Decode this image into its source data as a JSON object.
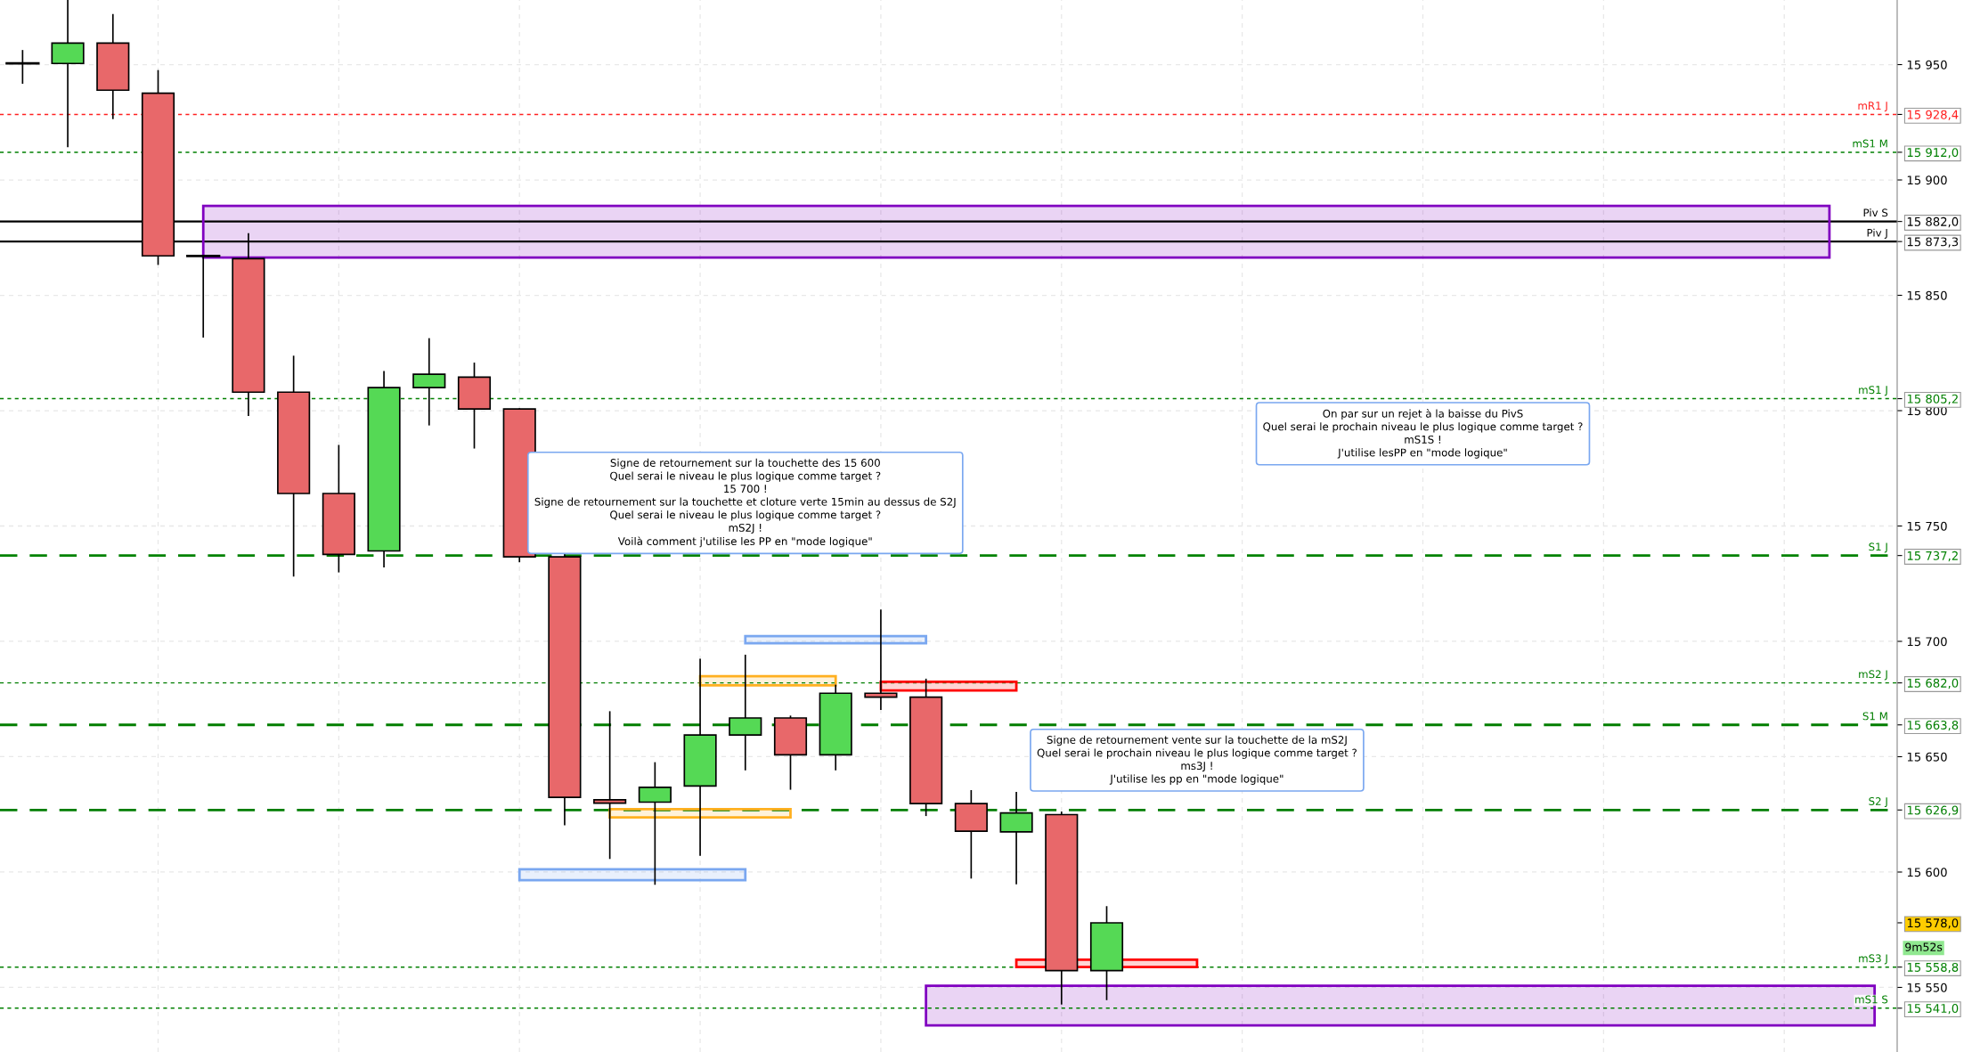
{
  "chart_data": {
    "type": "candlestick",
    "categories": [
      null,
      null,
      null,
      null,
      null,
      null,
      null,
      null,
      null,
      null,
      null,
      null,
      null,
      null,
      null,
      null,
      null,
      null,
      null,
      null,
      null,
      null,
      null,
      null,
      null,
      null,
      null,
      null,
      null,
      null,
      null,
      null,
      null,
      null,
      null,
      null,
      null,
      null,
      null,
      null,
      null,
      null
    ],
    "ohlc": [
      [
        15950.5,
        15956,
        15942,
        15950.5
      ],
      [
        15950.5,
        15978,
        15914.5,
        15959.3
      ],
      [
        15959.3,
        15971.6,
        15926.7,
        15938.9
      ],
      [
        15937.6,
        15947.3,
        15863.5,
        15867.1
      ],
      [
        15867,
        15867,
        15832,
        15867
      ],
      [
        15865.9,
        15876.6,
        15798,
        15808
      ],
      [
        15808,
        15823.5,
        15728.4,
        15764.1
      ],
      [
        15764.1,
        15784.8,
        15730.2,
        15737.7
      ],
      [
        15739.2,
        15816.9,
        15732.4,
        15810
      ],
      [
        15810,
        15831.1,
        15793.9,
        15815.8
      ],
      [
        15814.5,
        15820.5,
        15783.9,
        15800.7
      ],
      [
        15800.7,
        15800.7,
        15734.6,
        15736.6
      ],
      [
        15736.6,
        15737.5,
        15620.6,
        15632.4
      ],
      [
        15631.3,
        15669.4,
        15606,
        15629.9
      ],
      [
        15630.3,
        15647.3,
        15594.8,
        15636.7
      ],
      [
        15637.3,
        15692.1,
        15607.4,
        15659.4
      ],
      [
        15659.4,
        15693.9,
        15644.4,
        15666.8
      ],
      [
        15666.8,
        15667.5,
        15636,
        15650.8
      ],
      [
        15650.8,
        15680.9,
        15644.4,
        15677.5
      ],
      [
        15677.5,
        15713.5,
        15670.6,
        15675.8
      ],
      [
        15675.8,
        15683.5,
        15624.6,
        15629.7
      ],
      [
        15629.7,
        15635.2,
        15597.5,
        15617.7
      ],
      [
        15617.4,
        15634.4,
        15595,
        15625.6
      ],
      [
        15624.9,
        15625.9,
        15542.9,
        15557.3
      ],
      [
        15557.3,
        15584.9,
        15544.8,
        15578
      ],
      null,
      null,
      null,
      null,
      null,
      null,
      null,
      null,
      null,
      null,
      null,
      null,
      null,
      null,
      null,
      null,
      null
    ],
    "colors": [
      "#000000",
      "#55d955",
      "#e8686a",
      "#e8686a",
      "#000000",
      "#e8686a",
      "#e8686a",
      "#e8686a",
      "#55d955",
      "#55d955",
      "#e8686a",
      "#e8686a",
      "#e8686a",
      "#e8686a",
      "#55d955",
      "#55d955",
      "#55d955",
      "#e8686a",
      "#55d955",
      "#e8686a",
      "#e8686a",
      "#e8686a",
      "#55d955",
      "#e8686a",
      "#55d955",
      null,
      null,
      null,
      null,
      null,
      null,
      null,
      null,
      null,
      null,
      null,
      null,
      null,
      null,
      null,
      null,
      null
    ],
    "ylim": [
      15522,
      15978
    ],
    "yticks": [
      {
        "value": 15550,
        "label": "15 550"
      },
      {
        "value": 15600,
        "label": "15 600"
      },
      {
        "value": 15650,
        "label": "15 650"
      },
      {
        "value": 15700,
        "label": "15 700"
      },
      {
        "value": 15750,
        "label": "15 750"
      },
      {
        "value": 15800,
        "label": "15 800"
      },
      {
        "value": 15850,
        "label": "15 850"
      },
      {
        "value": 15900,
        "label": "15 900"
      },
      {
        "value": 15950,
        "label": "15 950"
      },
      {
        "value": 15928.4,
        "label": "15 928,4"
      },
      {
        "value": 15912.0,
        "label": "15 912,0"
      },
      {
        "value": 15882.0,
        "label": "15 882,0"
      },
      {
        "value": 15873.3,
        "label": "15 873,3"
      },
      {
        "value": 15805.2,
        "label": "15 805,2"
      },
      {
        "value": 15737.2,
        "label": "15 737,2"
      },
      {
        "value": 15682.0,
        "label": "15 682,0"
      },
      {
        "value": 15663.8,
        "label": "15 663,8"
      },
      {
        "value": 15626.9,
        "label": "15 626,9"
      },
      {
        "value": 15558.8,
        "label": "15 558,8"
      },
      {
        "value": 15541.0,
        "label": "15 541,0"
      },
      {
        "value": 15578.0,
        "label": "15 578,0"
      }
    ],
    "tick_labels": "y",
    "grid": true,
    "ref_lines": [
      {
        "axis": "y",
        "value": 15928.4,
        "label": "mR1 J",
        "color": "#ff2020",
        "line_style": "dotted"
      },
      {
        "axis": "y",
        "value": 15912.0,
        "label": "mS1 M",
        "color": "#008002",
        "line_style": "dotted"
      },
      {
        "axis": "y",
        "value": 15882.0,
        "label": "Piv S",
        "color": "#000000",
        "line_style": "solid"
      },
      {
        "axis": "y",
        "value": 15873.3,
        "label": "Piv J",
        "color": "#0a0a0a",
        "line_style": "solid"
      },
      {
        "axis": "y",
        "value": 15805.2,
        "label": "mS1 J",
        "color": "#028000",
        "line_style": "dotted"
      },
      {
        "axis": "y",
        "value": 15737.2,
        "label": "S1 J",
        "color": "#008200",
        "line_style": "dashed"
      },
      {
        "axis": "y",
        "value": 15682.0,
        "label": "mS2 J",
        "color": "#007e00",
        "line_style": "dotted"
      },
      {
        "axis": "y",
        "value": 15663.8,
        "label": "S1 M",
        "color": "#027e00",
        "line_style": "dashed"
      },
      {
        "axis": "y",
        "value": 15626.9,
        "label": "S2 J",
        "color": "#007e02",
        "line_style": "dashed"
      },
      {
        "axis": "y",
        "value": 15558.8,
        "label": "mS3 J",
        "color": "#028002",
        "line_style": "dotted"
      },
      {
        "axis": "y",
        "value": 15541.0,
        "label": "mS1 S",
        "color": "#008000",
        "line_style": "dotted"
      }
    ],
    "bands": [
      {
        "axis": "y",
        "from": 15866.4,
        "to": 15888.8,
        "color": "#8000c0"
      },
      {
        "axis": "y",
        "from": 15533.5,
        "to": 15550.7,
        "color": "#8000c0"
      },
      {
        "axis": "y",
        "from": 15596.5,
        "to": 15601.2,
        "color": "#7aa7f0"
      },
      {
        "axis": "y",
        "from": 15699.2,
        "to": 15702.3,
        "color": "#7aa7f0"
      },
      {
        "axis": "y",
        "from": 15623.7,
        "to": 15627.3,
        "color": "#ffb020"
      },
      {
        "axis": "y",
        "from": 15680.9,
        "to": 15684.9,
        "color": "#ffb020"
      },
      {
        "axis": "y",
        "from": 15678.7,
        "to": 15682.5,
        "color": "#ff0000"
      },
      {
        "axis": "y",
        "from": 15558.8,
        "to": 15562.0,
        "color": "#ff0000"
      }
    ],
    "annotations": [
      "Signe de retournement sur la touchette des 15 600\nQuel serai le niveau le plus logique comme target ?\n15 700 !\nSigne de retournement sur la touchette et cloture verte 15min au dessus de S2J\nQuel serai le niveau le plus logique comme target ?\nmS2J !\nVoilà comment j'utilise les PP en \"mode logique\"",
      "Signe de retournement vente sur la touchette de la mS2J\nQuel serai le prochain niveau le plus logique comme target ?\nms3J !\nJ'utilise les pp en \"mode logique\"",
      "On par sur un rejet à la baisse du PivS\nQuel serai le prochain niveau le plus logique comme target ?\nmS1S !\nJ'utilise lesPP en \"mode logique\"",
      "9m52s"
    ]
  }
}
